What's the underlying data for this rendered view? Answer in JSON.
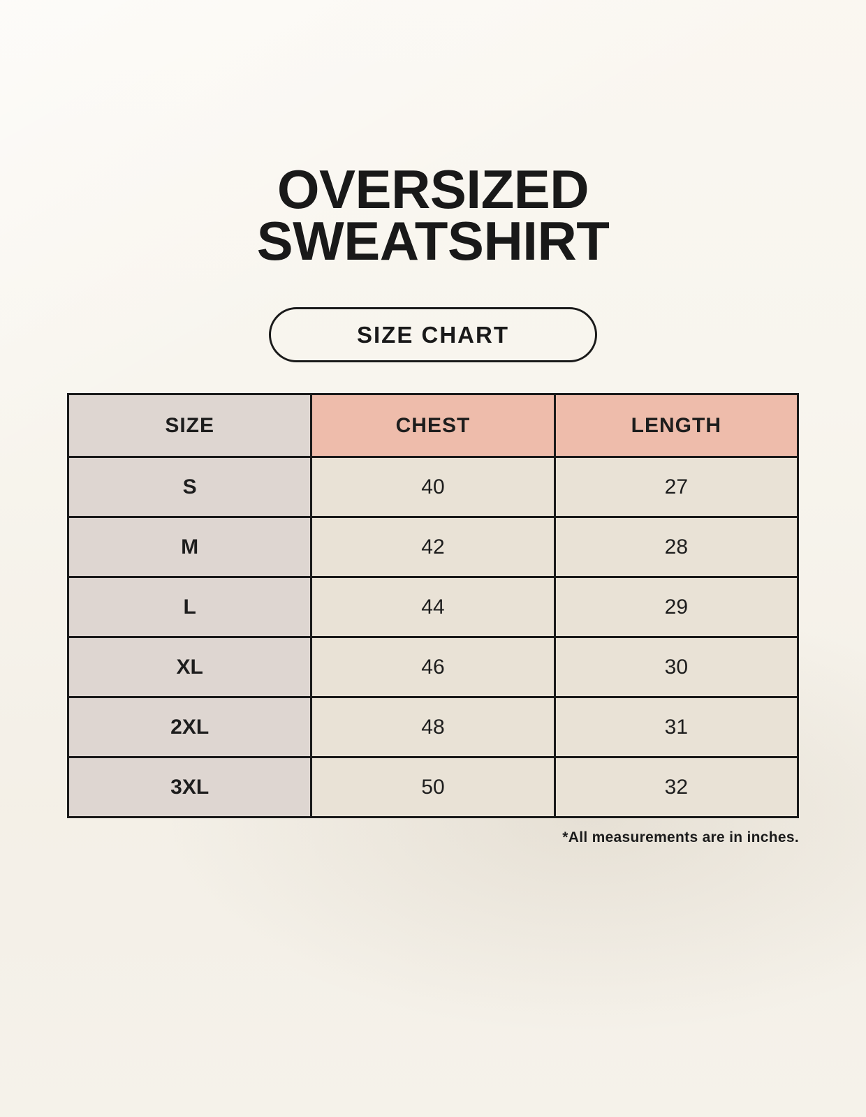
{
  "header": {
    "title_line1": "OVERSIZED",
    "title_line2": "SWEATSHIRT",
    "badge_label": "SIZE CHART"
  },
  "footnote": "*All measurements are in inches.",
  "colors": {
    "background": "#f8f5ee",
    "column_gray": "#ded6d1",
    "header_accent": "#eebcab",
    "cell_cream": "#e9e2d6",
    "line": "#1a1a1a",
    "text": "#1d1d1d"
  },
  "chart_data": {
    "type": "table",
    "title": "OVERSIZED SWEATSHIRT",
    "subtitle": "SIZE CHART",
    "columns": [
      "SIZE",
      "CHEST",
      "LENGTH"
    ],
    "rows": [
      [
        "S",
        "40",
        "27"
      ],
      [
        "M",
        "42",
        "28"
      ],
      [
        "L",
        "44",
        "29"
      ],
      [
        "XL",
        "46",
        "30"
      ],
      [
        "2XL",
        "48",
        "31"
      ],
      [
        "3XL",
        "50",
        "32"
      ]
    ],
    "units": "inches",
    "note": "*All measurements are in inches."
  }
}
